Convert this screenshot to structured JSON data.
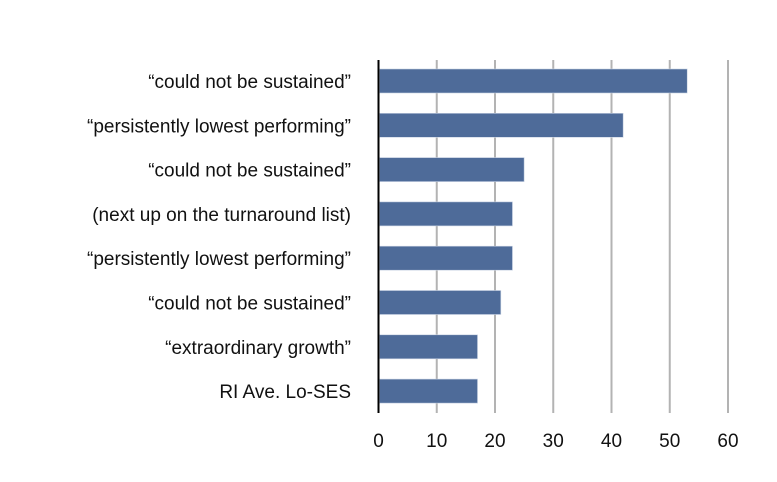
{
  "chart_data": {
    "type": "bar",
    "orientation": "horizontal",
    "categories": [
      "“could not be sustained”",
      "“persistently lowest performing”",
      "“could not be sustained”",
      "(next up on the turnaround list)",
      "“persistently lowest performing”",
      "“could not be sustained”",
      "“extraordinary growth”",
      "RI Ave. Lo-SES"
    ],
    "values": [
      53,
      42,
      25,
      23,
      23,
      21,
      17,
      17
    ],
    "xlim": [
      0,
      60
    ],
    "xticks": [
      "0",
      "10",
      "20",
      "30",
      "40",
      "50",
      "60"
    ],
    "grid": "vertical",
    "bar_color": "#4e6b99",
    "grid_color": "#b3b3b3",
    "title": "",
    "xlabel": "",
    "ylabel": ""
  }
}
